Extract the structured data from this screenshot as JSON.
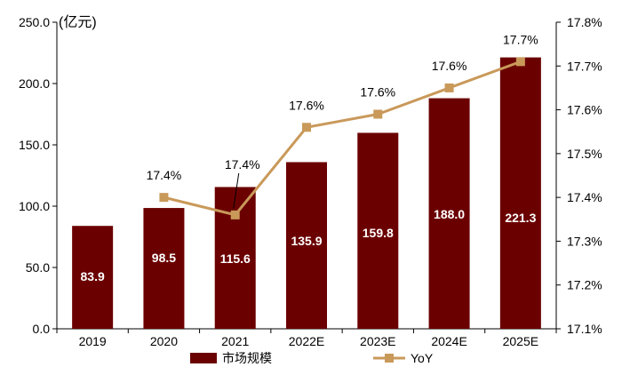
{
  "chart_data": {
    "type": "bar+line",
    "categories": [
      "2019",
      "2020",
      "2021",
      "2022E",
      "2023E",
      "2024E",
      "2025E"
    ],
    "unit_label": "(亿元)",
    "series": [
      {
        "name": "市场规模",
        "type": "bar",
        "axis": "left",
        "values": [
          83.9,
          98.5,
          115.6,
          135.9,
          159.8,
          188.0,
          221.3
        ],
        "value_labels": [
          "83.9",
          "98.5",
          "115.6",
          "135.9",
          "159.8",
          "188.0",
          "221.3"
        ]
      },
      {
        "name": "YoY",
        "type": "line",
        "axis": "right",
        "values": [
          null,
          17.4,
          17.36,
          17.56,
          17.59,
          17.65,
          17.71
        ],
        "value_labels": [
          "",
          "17.4%",
          "17.4%",
          "17.6%",
          "17.6%",
          "17.6%",
          "17.7%"
        ]
      }
    ],
    "y_left": {
      "min": 0,
      "max": 250,
      "step": 50,
      "tick_labels": [
        "0.0",
        "50.0",
        "100.0",
        "150.0",
        "200.0",
        "250.0"
      ]
    },
    "y_right": {
      "min": 17.1,
      "max": 17.8,
      "step": 0.1,
      "tick_labels": [
        "17.1%",
        "17.2%",
        "17.3%",
        "17.4%",
        "17.5%",
        "17.6%",
        "17.7%",
        "17.8%"
      ]
    },
    "grid": false,
    "legend_position": "bottom",
    "colors": {
      "bar": "#6b0000",
      "line": "#c9995a",
      "axis": "#000000"
    }
  }
}
